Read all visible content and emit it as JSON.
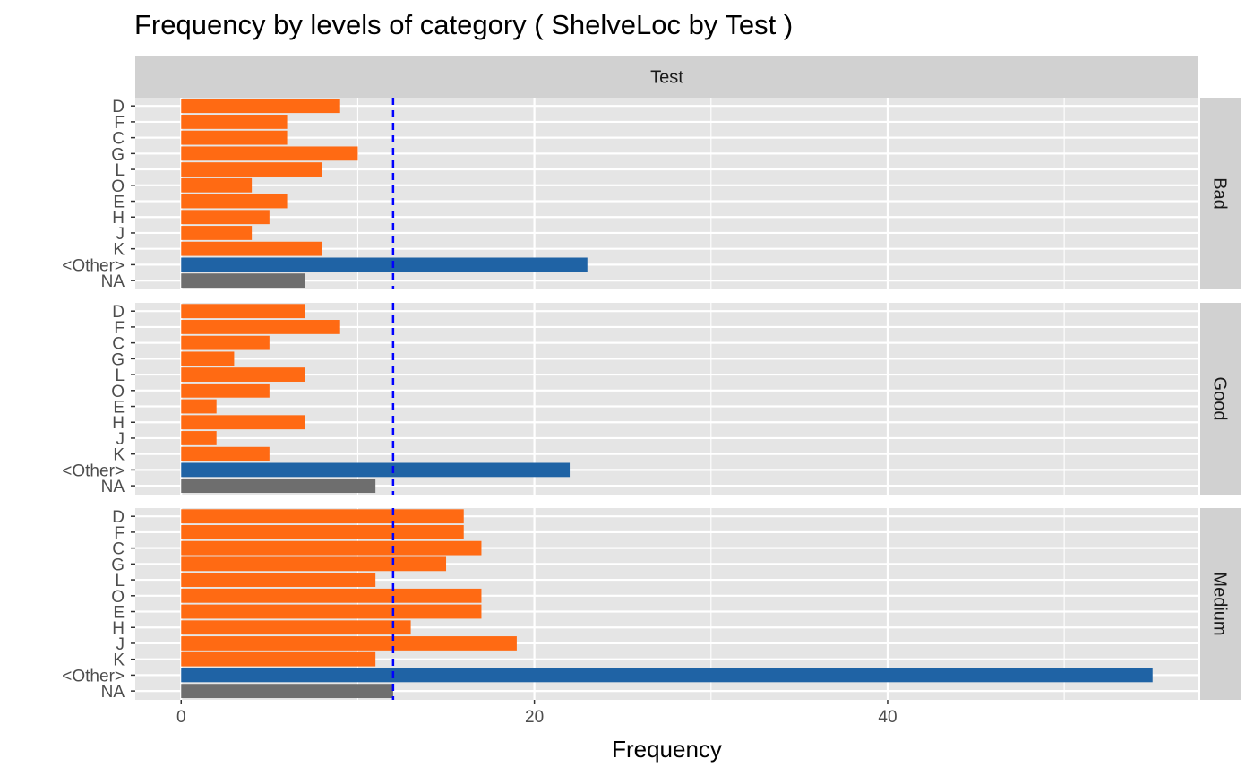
{
  "chart_data": {
    "type": "bar",
    "orientation": "horizontal",
    "title": "Frequency by levels of category ( ShelveLoc by Test )",
    "xlabel": "Frequency",
    "ylabel": "",
    "column_facet": "Test",
    "categories": [
      "D",
      "F",
      "C",
      "G",
      "L",
      "O",
      "E",
      "H",
      "J",
      "K",
      "<Other>",
      "NA"
    ],
    "xlim": [
      -2.6,
      57.6
    ],
    "xticks": [
      0,
      20,
      40
    ],
    "xticklabels": [
      "0",
      "20",
      "40"
    ],
    "reference_line": 12,
    "grid": true,
    "colors": {
      "level": "#FF6A13",
      "other": "#1F63A5",
      "na": "#6E6E6E",
      "reference_line": "#0000FF",
      "panel_background": "#E5E5E5",
      "grid": "#FFFFFF",
      "strip_background": "#D1D1D1"
    },
    "panels": [
      {
        "name": "Bad",
        "values": [
          9,
          6,
          6,
          10,
          8,
          4,
          6,
          5,
          4,
          8,
          23,
          7
        ]
      },
      {
        "name": "Good",
        "values": [
          7,
          9,
          5,
          3,
          7,
          5,
          2,
          7,
          2,
          5,
          22,
          11
        ]
      },
      {
        "name": "Medium",
        "values": [
          16,
          16,
          17,
          15,
          11,
          17,
          17,
          13,
          19,
          11,
          55,
          12
        ]
      }
    ]
  }
}
